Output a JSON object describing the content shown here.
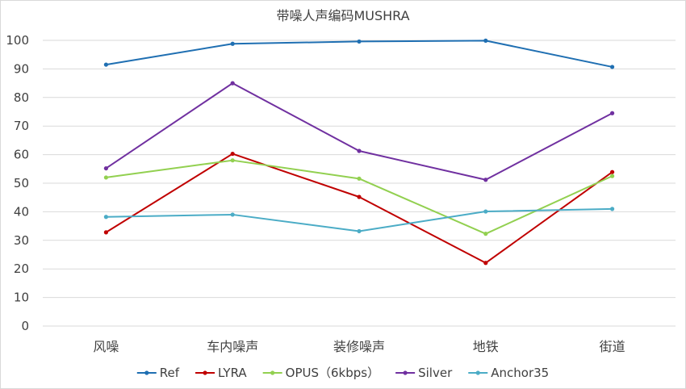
{
  "chart_data": {
    "type": "line",
    "title": "带噪人声编码MUSHRA",
    "categories": [
      "风噪",
      "车内噪声",
      "装修噪声",
      "地铁",
      "街道"
    ],
    "ylim": [
      0,
      100
    ],
    "yticks": [
      0,
      10,
      20,
      30,
      40,
      50,
      60,
      70,
      80,
      90,
      100
    ],
    "grid": "horizontal",
    "legend_position": "bottom",
    "series": [
      {
        "name": "Ref",
        "color": "#1f6fb2",
        "values": [
          91.5,
          98.8,
          99.6,
          99.9,
          90.7
        ]
      },
      {
        "name": "LYRA",
        "color": "#c00000",
        "values": [
          32.8,
          60.3,
          45.2,
          22.1,
          53.9
        ]
      },
      {
        "name": "OPUS（6kbps）",
        "color": "#92d050",
        "values": [
          52.0,
          58.0,
          51.6,
          32.3,
          52.5
        ]
      },
      {
        "name": "Silver",
        "color": "#7030a0",
        "values": [
          55.2,
          85.0,
          61.3,
          51.2,
          74.5
        ]
      },
      {
        "name": "Anchor35",
        "color": "#4bacc6",
        "values": [
          38.2,
          39.0,
          33.2,
          40.1,
          41.0
        ]
      }
    ]
  }
}
